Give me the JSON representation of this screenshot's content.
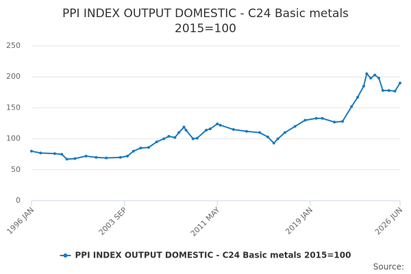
{
  "chart_data": {
    "type": "line",
    "title": [
      "PPI INDEX OUTPUT DOMESTIC - C24 Basic metals",
      "2015=100"
    ],
    "x": [
      "1996-01",
      "1996-10",
      "1997-12",
      "1998-07",
      "1998-12",
      "1999-08",
      "2000-07",
      "2001-05",
      "2002-03",
      "2003-05",
      "2003-12",
      "2004-06",
      "2005-01",
      "2005-09",
      "2006-05",
      "2006-12",
      "2007-05",
      "2007-11",
      "2008-03",
      "2008-08",
      "2008-10",
      "2009-05",
      "2009-09",
      "2010-06",
      "2010-10",
      "2011-05",
      "2011-08",
      "2012-09",
      "2013-10",
      "2014-11",
      "2015-07",
      "2016-01",
      "2016-05",
      "2016-12",
      "2017-10",
      "2018-08",
      "2019-07",
      "2020-01",
      "2021-01",
      "2021-09",
      "2022-06",
      "2022-12",
      "2023-06",
      "2023-09",
      "2024-01",
      "2024-05",
      "2024-09",
      "2025-01",
      "2025-07",
      "2026-01",
      "2026-06"
    ],
    "series": [
      {
        "name": "PPI INDEX OUTPUT DOMESTIC - C24 Basic metals 2015=100",
        "color": "#1a7abf",
        "values": [
          80,
          77,
          76,
          75,
          67,
          68,
          72,
          70,
          69,
          70,
          72,
          80,
          85,
          86,
          95,
          100,
          104,
          102,
          110,
          119,
          114,
          100,
          101,
          114,
          116,
          124,
          122,
          115,
          112,
          110,
          103,
          93,
          100,
          110,
          120,
          130,
          133,
          133,
          127,
          128,
          152,
          167,
          185,
          205,
          198,
          203,
          198,
          178,
          178,
          177,
          190
        ]
      }
    ],
    "xlim": [
      "1996-01",
      "2026-06"
    ],
    "xticks": [
      {
        "value": "1996-01",
        "label": "1996 JAN"
      },
      {
        "value": "2003-09",
        "label": "2003 SEP"
      },
      {
        "value": "2011-05",
        "label": "2011 MAY"
      },
      {
        "value": "2019-01",
        "label": "2019 JAN"
      },
      {
        "value": "2026-06",
        "label": "2026 JUN"
      }
    ],
    "ylim": [
      0,
      250
    ],
    "yticks": [
      0,
      50,
      100,
      150,
      200,
      250
    ],
    "grid": true,
    "legend": "bottom",
    "source": "Source:"
  }
}
